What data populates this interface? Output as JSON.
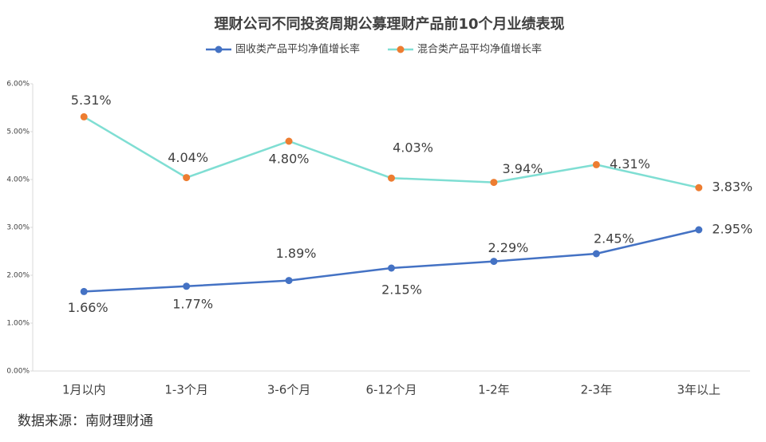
{
  "chart_data": {
    "type": "line",
    "title": "理财公司不同投资周期公募理财产品前10个月业绩表现",
    "source": "数据来源：南财理财通",
    "categories": [
      "1月以内",
      "1-3个月",
      "3-6个月",
      "6-12个月",
      "1-2年",
      "2-3年",
      "3年以上"
    ],
    "series": [
      {
        "name": "固收类产品平均净值增长率",
        "color": "#4472c4",
        "marker_color": "#4472c4",
        "values": [
          1.66,
          1.77,
          1.89,
          2.15,
          2.29,
          2.45,
          2.95
        ],
        "value_labels": [
          "1.66%",
          "1.77%",
          "1.89%",
          "2.15%",
          "2.29%",
          "2.45%",
          "2.95%"
        ]
      },
      {
        "name": "混合类产品平均净值增长率",
        "color": "#7fded3",
        "marker_color": "#ed7d31",
        "values": [
          5.31,
          4.04,
          4.8,
          4.03,
          3.94,
          4.31,
          3.83
        ],
        "value_labels": [
          "5.31%",
          "4.04%",
          "4.80%",
          "4.03%",
          "3.94%",
          "4.31%",
          "3.83%"
        ]
      }
    ],
    "ylim": [
      0,
      6
    ],
    "yticks": [
      {
        "value": 0,
        "label": "0.00%"
      },
      {
        "value": 1,
        "label": "1.00%"
      },
      {
        "value": 2,
        "label": "2.00%"
      },
      {
        "value": 3,
        "label": "3.00%"
      },
      {
        "value": 4,
        "label": "4.00%"
      },
      {
        "value": 5,
        "label": "5.00%"
      },
      {
        "value": 6,
        "label": "6.00%"
      }
    ],
    "grid": false
  }
}
